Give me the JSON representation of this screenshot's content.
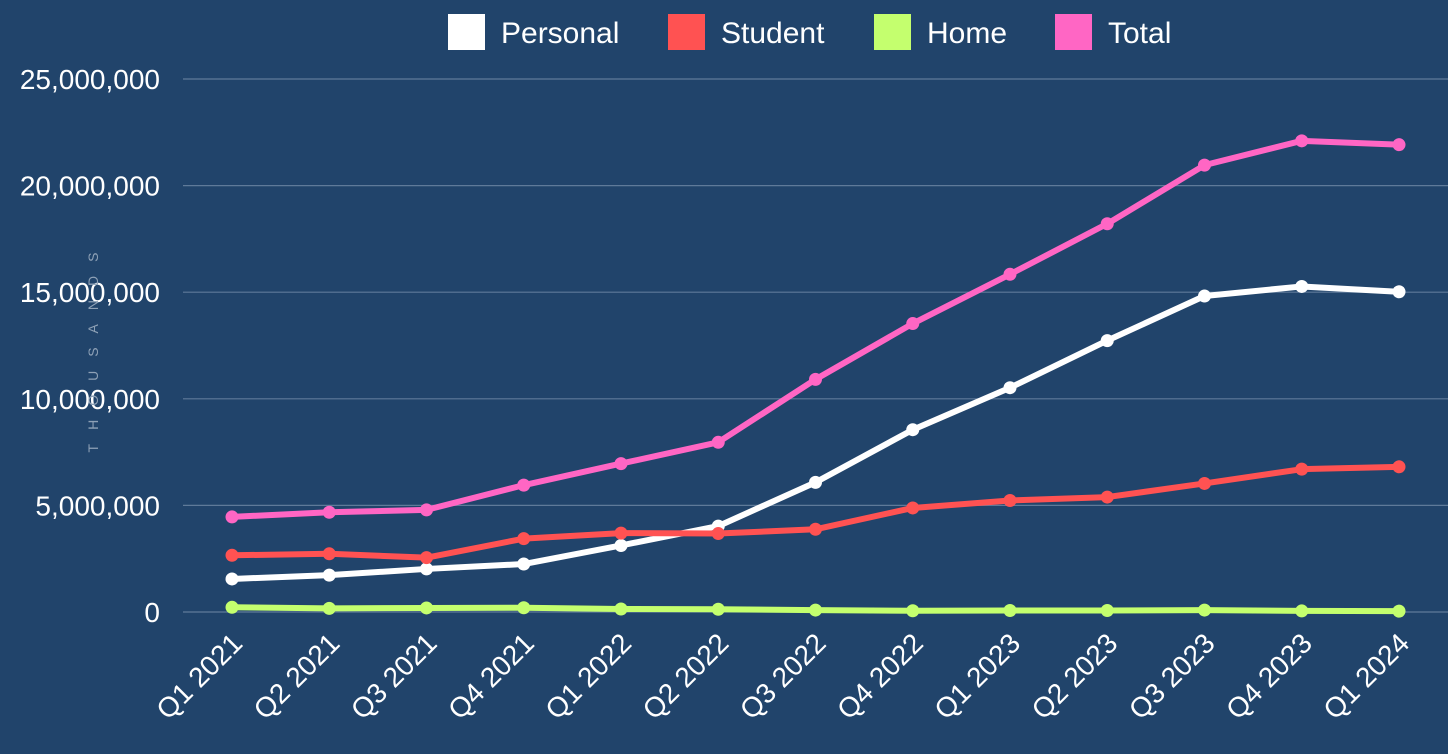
{
  "chart_data": {
    "type": "line",
    "title": "",
    "xlabel": "",
    "ylabel": "THOUSANDS",
    "ylim": [
      0,
      25000000
    ],
    "yticks": [
      0,
      5000000,
      10000000,
      15000000,
      20000000,
      25000000
    ],
    "ytick_labels": [
      "0",
      "5,000,000",
      "10,000,000",
      "15,000,000",
      "20,000,000",
      "25,000,000"
    ],
    "categories": [
      "Q1 2021",
      "Q2 2021",
      "Q3 2021",
      "Q4 2021",
      "Q1 2022",
      "Q2 2022",
      "Q3 2022",
      "Q4 2022",
      "Q1 2023",
      "Q2 2023",
      "Q3 2023",
      "Q4 2023",
      "Q1 2024"
    ],
    "legend_position": "top",
    "grid": true,
    "series": [
      {
        "name": "Personal",
        "color": "#ffffff",
        "values": [
          1550000,
          1730000,
          2020000,
          2250000,
          3120000,
          4030000,
          6080000,
          8550000,
          10520000,
          12730000,
          14820000,
          15270000,
          15020000
        ]
      },
      {
        "name": "Student",
        "color": "#ff5252",
        "values": [
          2660000,
          2730000,
          2550000,
          3440000,
          3700000,
          3680000,
          3880000,
          4880000,
          5230000,
          5390000,
          6030000,
          6700000,
          6810000
        ]
      },
      {
        "name": "Home",
        "color": "#c4ff6e",
        "values": [
          220000,
          170000,
          190000,
          200000,
          140000,
          130000,
          90000,
          60000,
          70000,
          70000,
          90000,
          50000,
          40000
        ]
      },
      {
        "name": "Total",
        "color": "#ff66c4",
        "values": [
          4460000,
          4680000,
          4790000,
          5950000,
          6960000,
          7960000,
          10910000,
          13530000,
          15840000,
          18210000,
          20960000,
          22100000,
          21920000
        ]
      }
    ]
  }
}
